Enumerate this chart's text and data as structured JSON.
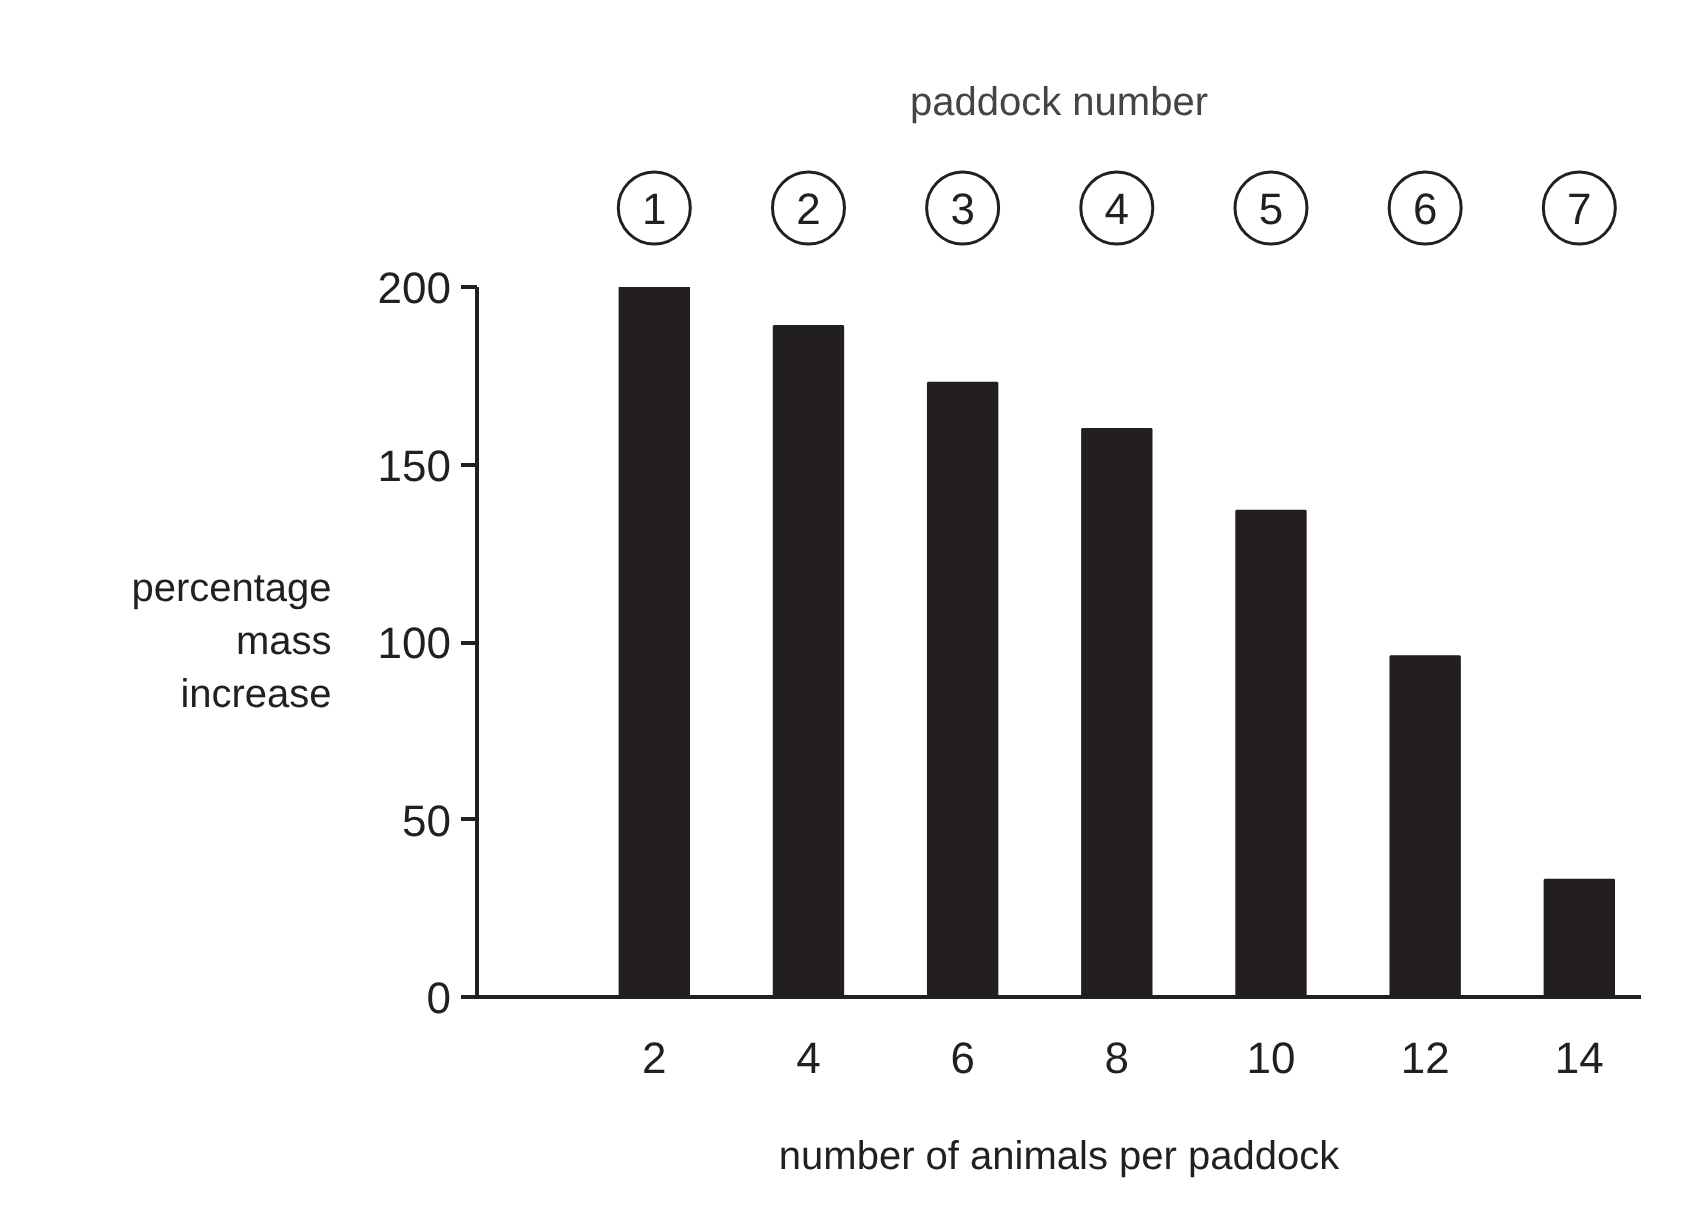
{
  "chart_data": {
    "type": "bar",
    "xlabel": "number of animals per paddock",
    "ylabel": "percentage mass increase",
    "x2label": "paddock number",
    "x": [
      2,
      4,
      6,
      8,
      10,
      12,
      14
    ],
    "values": [
      200,
      189,
      173,
      160,
      137,
      96,
      33
    ],
    "color": "#231f20",
    "xlim": [
      -0.3,
      14.8
    ],
    "xticks": [
      2,
      4,
      6,
      8,
      10,
      12,
      14
    ],
    "annotations": [
      "1",
      "2",
      "3",
      "4",
      "5",
      "6",
      "7"
    ],
    "ylim": [
      0,
      200
    ],
    "yticks": [
      0,
      50,
      100,
      150,
      200
    ]
  }
}
